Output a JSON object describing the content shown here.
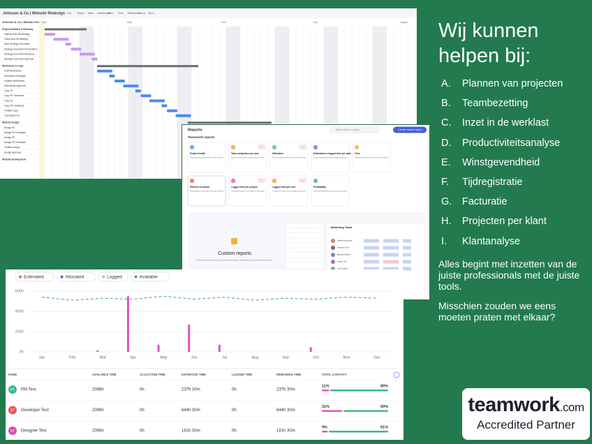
{
  "gantt": {
    "title": "Johnson & Co | Website Redesign",
    "tabs": [
      "List",
      "Board",
      "Table",
      "Dashboard",
      "Files",
      "Time",
      "Milestones",
      "Forms",
      "More..."
    ],
    "project": "Johnson & Co | Website Red...",
    "months": [
      "April",
      "May",
      "June",
      "July",
      "August"
    ],
    "tasks": [
      "Project Initiation & Planning",
      "Internal Kick-Off Meeting",
      "Client Kick-Off Meeting",
      "Draft Strategy Document",
      "Strategy Document Presentation",
      "Strategy Document Revisions",
      "Strategy Document Approval",
      "Wireframes & Copy",
      "Draft Wireframes",
      "Wireframe Feedback",
      "Finalise Wireframes",
      "Wireframes Approval",
      "Copy R1",
      "Copy R1 Feedback",
      "Copy R2",
      "Copy R2 Feedback",
      "Finalise Copy",
      "Copy Approval",
      "Website Design",
      "Design R1",
      "Design R1 Feedback",
      "Design R2",
      "Design R2 Feedback",
      "Finalise Design",
      "Design Approval",
      "Website Development"
    ]
  },
  "reports": {
    "title": "Reports",
    "search": "Search title or creator",
    "button": "Create custom report",
    "section": "Teamwork reports",
    "cards": [
      {
        "title": "Project health",
        "text": "Track and manage the progress of your projects"
      },
      {
        "title": "Task completion per user",
        "text": "Assess the amount of tasks assigned to and completed by people in a given timeframe"
      },
      {
        "title": "Utilization",
        "text": "Track and manage how much your team's time is being utilized"
      },
      {
        "title": "Estimated vs logged time per task",
        "text": "Compare estimated time with time logged against tasks"
      },
      {
        "title": "Time",
        "text": "Track logged time across users, teams, clients and companies"
      },
      {
        "title": "Planned vs actual",
        "text": "Compare planned vs actual dates across projects and tasks"
      },
      {
        "title": "Logged time per project",
        "text": "Compare the amount of time logged across projects"
      },
      {
        "title": "Logged time per user",
        "text": "Compare the amount of time logged across users"
      },
      {
        "title": "Profitability",
        "text": "Track the profitability of your projects and clients"
      }
    ],
    "new_badge": "New",
    "custom_title": "Custom reports",
    "custom_text": "Unlock the full power of reporting with our Custom Reports feature. This allows you to build reports entirely from scratch.",
    "team_title": "Marketing Team",
    "people": [
      "Ashley Goodman",
      "Amanda Vera",
      "Brandon Wilson",
      "Jessie Lee",
      "Joe Hopkins"
    ]
  },
  "capacity": {
    "chart_data": {
      "type": "bar",
      "categories": [
        "Jan",
        "Feb",
        "Mar",
        "Apr",
        "May",
        "Jun",
        "Jul",
        "Aug",
        "Sep",
        "Oct",
        "Nov",
        "Dec"
      ],
      "series": [
        {
          "name": "Estimated",
          "color": "#e94fbf",
          "values": [
            0,
            0,
            15,
            550,
            70,
            270,
            70,
            0,
            0,
            45,
            0,
            0
          ]
        },
        {
          "name": "Allocated",
          "color": "#4a66d8",
          "values": [
            0,
            0,
            0,
            0,
            0,
            0,
            0,
            0,
            0,
            0,
            0,
            0
          ]
        },
        {
          "name": "Logged",
          "color": "#bbbbbb",
          "values": [
            0,
            0,
            0,
            0,
            0,
            0,
            0,
            0,
            0,
            0,
            0,
            0
          ]
        },
        {
          "name": "Available",
          "color": "#3fa878",
          "line": true,
          "values": [
            540,
            510,
            530,
            520,
            550,
            520,
            540,
            510,
            530,
            520,
            540,
            530
          ]
        }
      ],
      "ylim": [
        0,
        600
      ],
      "yticks": [
        {
          "value": 0,
          "label": "0h"
        },
        {
          "value": 200,
          "label": "200h"
        },
        {
          "value": 400,
          "label": "400h"
        },
        {
          "value": 600,
          "label": "600h"
        }
      ],
      "grid": true
    },
    "table": {
      "header": [
        "NAME",
        "AVAILABLE TIME",
        "ALLOCATED TIME",
        "ESTIMATED TIME",
        "LOGGED TIME",
        "REMAINING TIME",
        "TOTAL CAPACITY"
      ],
      "rows": [
        {
          "initials": "PT",
          "color": "#3fb884",
          "cells": [
            "PM Test",
            "2096h",
            "0h",
            "237h 30m",
            "0h",
            "237h 30m"
          ],
          "used": "11%",
          "free": "89%"
        },
        {
          "initials": "DT",
          "color": "#e05a5a",
          "cells": [
            "Developer Test",
            "2096h",
            "0h",
            "644h 30m",
            "0h",
            "644h 30m"
          ],
          "used": "31%",
          "free": "69%"
        },
        {
          "initials": "DT",
          "color": "#d94aa8",
          "cells": [
            "Designer Test",
            "2096h",
            "0h",
            "181h 30m",
            "0h",
            "181h 30m"
          ],
          "used": "9%",
          "free": "91%"
        }
      ]
    }
  },
  "promo": {
    "heading": "Wij kunnen helpen bij:",
    "items": [
      {
        "letter": "A.",
        "text": "Plannen van projecten"
      },
      {
        "letter": "B.",
        "text": "Teambezetting"
      },
      {
        "letter": "C.",
        "text": "Inzet in de werklast"
      },
      {
        "letter": "D.",
        "text": "Productiviteitsanalyse"
      },
      {
        "letter": "E.",
        "text": "Winstgevendheid"
      },
      {
        "letter": "F.",
        "text": "Tijdregistratie"
      },
      {
        "letter": "G.",
        "text": "Facturatie"
      },
      {
        "letter": "H.",
        "text": "Projecten per klant"
      },
      {
        "letter": "I.",
        "text": "Klantanalyse"
      }
    ],
    "paragraphs": [
      "Alles begint met inzetten van de juiste professionals met de juiste tools.",
      "Misschien zouden we eens moeten praten met elkaar?"
    ],
    "logo_word": "teamwork",
    "logo_suffix": ".com",
    "logo_sub": "Accredited Partner"
  }
}
